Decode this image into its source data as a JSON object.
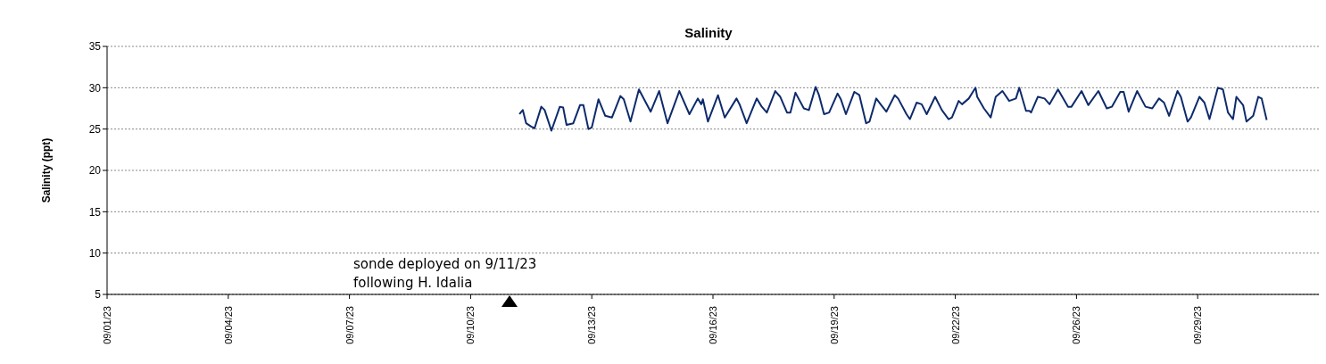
{
  "chart_data": {
    "type": "line",
    "title": "Salinity",
    "ylabel": "Salinity (ppt)",
    "x": [
      "--09-11T05:00",
      "--09-11T07:00",
      "--09-11T09:00",
      "--09-11T12:00",
      "--09-11T14:00",
      "--09-11T18:00",
      "--09-11T20:00",
      "--09-12T00:00",
      "--09-12T05:00",
      "--09-12T07:00",
      "--09-12T09:00",
      "--09-12T13:00",
      "--09-12T17:00",
      "--09-12T19:00",
      "--09-12T22:00",
      "--09-13T00:00",
      "--09-13T04:00",
      "--09-13T08:00",
      "--09-13T12:00",
      "--09-13T17:00",
      "--09-13T19:00",
      "--09-13T23:00",
      "--09-14T04:00",
      "--09-14T11:00",
      "--09-14T16:00",
      "--09-14T21:00",
      "--09-15T04:00",
      "--09-15T10:00",
      "--09-15T15:00",
      "--09-15T17:00",
      "--09-15T18:00",
      "--09-15T21:00",
      "--09-16T03:00",
      "--09-16T07:00",
      "--09-16T14:00",
      "--09-16T16:00",
      "--09-16T20:00",
      "--09-17T02:00",
      "--09-17T05:00",
      "--09-17T08:00",
      "--09-17T13:00",
      "--09-17T16:00",
      "--09-17T20:00",
      "--09-17T22:00",
      "--09-18T01:00",
      "--09-18T06:00",
      "--09-18T09:00",
      "--09-18T13:00",
      "--09-18T15:00",
      "--09-18T18:00",
      "--09-18T21:00",
      "--09-19T02:00",
      "--09-19T04:00",
      "--09-19T07:00",
      "--09-19T12:00",
      "--09-19T15:00",
      "--09-19T19:00",
      "--09-19T21:00",
      "--09-20T01:00",
      "--09-20T04:00",
      "--09-20T07:00",
      "--09-20T12:00",
      "--09-20T14:00",
      "--09-20T19:00",
      "--09-20T21:00",
      "--09-21T01:00",
      "--09-21T04:00",
      "--09-21T07:00",
      "--09-21T12:00",
      "--09-21T16:00",
      "--09-21T20:00",
      "--09-21T22:00",
      "--09-22T02:00",
      "--09-22T04:00",
      "--09-22T08:00",
      "--09-22T12:00",
      "--09-22T13:00",
      "--09-22T17:00",
      "--09-22T21:00",
      "--09-23T00:00",
      "--09-23T04:00",
      "--09-23T08:00",
      "--09-23T12:00",
      "--09-23T14:00",
      "--09-23T18:00",
      "--09-23T20:00",
      "--09-23T21:00",
      "--09-24T01:00",
      "--09-24T05:00",
      "--09-24T08:00",
      "--09-24T13:00",
      "--09-24T19:00",
      "--09-24T21:00",
      "--09-25T03:00",
      "--09-25T07:00",
      "--09-25T13:00",
      "--09-25T18:00",
      "--09-25T21:00",
      "--09-26T02:00",
      "--09-26T04:00",
      "--09-26T07:00",
      "--09-26T12:00",
      "--09-26T17:00",
      "--09-26T21:00",
      "--09-27T01:00",
      "--09-27T04:00",
      "--09-27T07:00",
      "--09-27T12:00",
      "--09-27T14:00",
      "--09-27T18:00",
      "--09-27T20:00",
      "--09-28T01:00",
      "--09-28T04:00",
      "--09-28T07:00",
      "--09-28T12:00",
      "--09-28T15:00",
      "--09-28T18:00",
      "--09-28T21:00",
      "--09-28T23:00",
      "--09-29T03:00",
      "--09-29T05:00",
      "--09-29T09:00",
      "--09-29T12:00",
      "--09-29T14:00",
      "--09-29T17:00"
    ],
    "series": [
      {
        "color": "#0d2a6b",
        "values": [
          26.8,
          27.3,
          25.7,
          25.3,
          25.1,
          27.7,
          27.3,
          24.8,
          27.7,
          27.6,
          25.5,
          25.7,
          27.9,
          27.9,
          25.0,
          25.2,
          28.6,
          26.6,
          26.4,
          29.0,
          28.6,
          25.9,
          29.8,
          27.1,
          29.6,
          25.7,
          29.6,
          26.8,
          28.7,
          28.0,
          28.6,
          25.9,
          29.1,
          26.4,
          28.7,
          27.9,
          25.7,
          28.7,
          27.7,
          27.0,
          29.6,
          28.9,
          27.0,
          27.0,
          29.4,
          27.5,
          27.3,
          30.1,
          29.1,
          26.8,
          27.0,
          29.3,
          28.6,
          26.8,
          29.5,
          29.1,
          25.7,
          25.9,
          28.7,
          27.9,
          27.1,
          29.1,
          28.7,
          26.8,
          26.2,
          28.2,
          28.0,
          26.8,
          28.9,
          27.3,
          26.2,
          26.4,
          28.4,
          28.0,
          28.7,
          30.0,
          28.9,
          27.5,
          26.4,
          28.9,
          29.6,
          28.4,
          28.7,
          30.0,
          27.2,
          27.2,
          27.0,
          28.9,
          28.7,
          28.0,
          29.8,
          27.7,
          27.7,
          29.6,
          27.9,
          29.6,
          27.5,
          27.7,
          29.5,
          29.5,
          27.1,
          29.6,
          27.7,
          27.5,
          28.7,
          28.2,
          26.6,
          29.6,
          28.9,
          25.9,
          26.4,
          28.9,
          28.2,
          26.2,
          30.0,
          29.8,
          27.0,
          26.2,
          28.9,
          27.9,
          25.9,
          26.6,
          28.9,
          28.7,
          26.1
        ]
      }
    ],
    "xlim": [
      "--09-01",
      "--10-01"
    ],
    "xticks": [
      {
        "value": "--09-01",
        "label": "09/01/23"
      },
      {
        "value": "--09-04",
        "label": "09/04/23"
      },
      {
        "value": "--09-07",
        "label": "09/07/23"
      },
      {
        "value": "--09-10",
        "label": "09/10/23"
      },
      {
        "value": "--09-13",
        "label": "09/13/23"
      },
      {
        "value": "--09-16",
        "label": "09/16/23"
      },
      {
        "value": "--09-19",
        "label": "09/19/23"
      },
      {
        "value": "--09-22",
        "label": "09/22/23"
      },
      {
        "value": "--09-25",
        "label": "09/26/23"
      },
      {
        "value": "--09-28",
        "label": "09/29/23"
      }
    ],
    "ylim": [
      5,
      35
    ],
    "yticks": [
      5,
      10,
      15,
      20,
      25,
      30,
      35
    ],
    "grid": "y",
    "legend": false,
    "marker": "none",
    "line_style": "solid",
    "annotations": [
      "sonde deployed on 9/11/23 following H. Idalia"
    ]
  }
}
